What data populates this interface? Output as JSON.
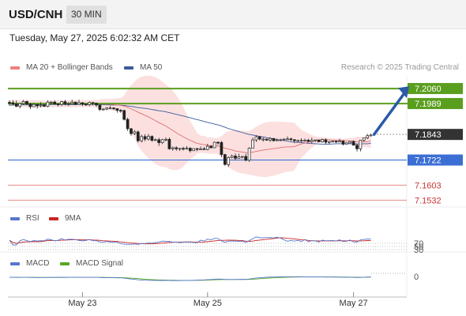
{
  "header": {
    "symbol": "USD/CNH",
    "timeframe": "30 MIN"
  },
  "datetime": "Tuesday, May 27, 2025 6:02:32 AM CET",
  "legend": [
    {
      "label": "MA 20 + Bollinger Bands",
      "color": "#f08080"
    },
    {
      "label": "MA 50",
      "color": "#3a5a9a"
    }
  ],
  "copyright": "Research © 2025 Trading Central",
  "rsi_legend": [
    {
      "label": "RSI",
      "color": "#5577cc"
    },
    {
      "label": "9MA",
      "color": "#cc2222"
    }
  ],
  "macd_legend": [
    {
      "label": "MACD",
      "color": "#5577cc"
    },
    {
      "label": "MACD Signal",
      "color": "#55aa22"
    }
  ],
  "colors": {
    "green": "#5a9e1e",
    "blue": "#3b6fd4",
    "red": "#e88a8a",
    "dark": "#333333",
    "candle": "#ffffff"
  },
  "chart_data": {
    "type": "candlestick",
    "x_ticks": [
      "May 23",
      "May 25",
      "May 27"
    ],
    "price_levels": [
      {
        "value": 7.206,
        "label": "7.2060",
        "style": "green"
      },
      {
        "value": 7.1989,
        "label": "7.1989",
        "style": "green"
      },
      {
        "value": 7.1843,
        "label": "7.1843",
        "style": "dark"
      },
      {
        "value": 7.1722,
        "label": "7.1722",
        "style": "blue"
      },
      {
        "value": 7.1603,
        "label": "7.1603",
        "style": "red"
      },
      {
        "value": 7.1532,
        "label": "7.1532",
        "style": "red"
      }
    ],
    "ohlc": [
      [
        7.1995,
        7.1993,
        7.2004,
        7.1979
      ],
      [
        7.1993,
        7.1987,
        7.2005,
        7.198
      ],
      [
        7.1987,
        7.1976,
        7.2003,
        7.1972
      ],
      [
        7.1976,
        7.1989,
        7.1992,
        7.1966
      ],
      [
        7.1989,
        7.1999,
        7.2006,
        7.1983
      ],
      [
        7.1999,
        7.1987,
        7.2003,
        7.1981
      ],
      [
        7.1987,
        7.1974,
        7.1991,
        7.1963
      ],
      [
        7.1974,
        7.1985,
        7.199,
        7.1974
      ],
      [
        7.1985,
        7.1978,
        7.1986,
        7.1965
      ],
      [
        7.1978,
        7.1982,
        7.1996,
        7.1971
      ],
      [
        7.1982,
        7.1976,
        7.1987,
        7.1973
      ],
      [
        7.1976,
        7.1996,
        7.2004,
        7.1971
      ],
      [
        7.1996,
        7.1996,
        7.2,
        7.1987
      ],
      [
        7.1996,
        7.1987,
        7.2004,
        7.1983
      ],
      [
        7.1987,
        7.1985,
        7.1989,
        7.1975
      ],
      [
        7.1985,
        7.1998,
        7.2002,
        7.1977
      ],
      [
        7.1998,
        7.1988,
        7.2006,
        7.1981
      ],
      [
        7.1988,
        7.1989,
        7.1996,
        7.1977
      ],
      [
        7.1989,
        7.1996,
        7.2007,
        7.1989
      ],
      [
        7.1996,
        7.1985,
        7.1997,
        7.1982
      ],
      [
        7.1985,
        7.1993,
        7.2007,
        7.1985
      ],
      [
        7.1993,
        7.1986,
        7.1996,
        7.1977
      ],
      [
        7.1986,
        7.1984,
        7.199,
        7.1978
      ],
      [
        7.1984,
        7.1994,
        7.1998,
        7.1976
      ],
      [
        7.1994,
        7.1991,
        7.1994,
        7.198
      ],
      [
        7.1991,
        7.1982,
        7.1991,
        7.1973
      ],
      [
        7.1982,
        7.1961,
        7.1984,
        7.1954
      ],
      [
        7.1961,
        7.1963,
        7.1966,
        7.1956
      ],
      [
        7.1963,
        7.1968,
        7.1971,
        7.1957
      ],
      [
        7.1968,
        7.1968,
        7.1977,
        7.1962
      ],
      [
        7.1968,
        7.1965,
        7.1971,
        7.1958
      ],
      [
        7.1965,
        7.1957,
        7.1966,
        7.1946
      ],
      [
        7.1957,
        7.1956,
        7.1963,
        7.1946
      ],
      [
        7.1956,
        7.1914,
        7.196,
        7.1909
      ],
      [
        7.1914,
        7.187,
        7.1922,
        7.186
      ],
      [
        7.187,
        7.1847,
        7.1873,
        7.1837
      ],
      [
        7.1847,
        7.1855,
        7.1863,
        7.184
      ],
      [
        7.1855,
        7.1813,
        7.1862,
        7.1805
      ],
      [
        7.1813,
        7.1833,
        7.1842,
        7.1805
      ],
      [
        7.1833,
        7.1821,
        7.1844,
        7.1811
      ],
      [
        7.1821,
        7.1834,
        7.1845,
        7.1814
      ],
      [
        7.1834,
        7.1815,
        7.1839,
        7.1808
      ],
      [
        7.1815,
        7.1818,
        7.1824,
        7.1813
      ],
      [
        7.1818,
        7.1804,
        7.1827,
        7.1789
      ],
      [
        7.1804,
        7.1818,
        7.1822,
        7.1798
      ],
      [
        7.1818,
        7.182,
        7.1829,
        7.1811
      ],
      [
        7.182,
        7.1775,
        7.1828,
        7.1771
      ],
      [
        7.1775,
        7.178,
        7.1786,
        7.1766
      ],
      [
        7.178,
        7.1775,
        7.1787,
        7.1766
      ],
      [
        7.1775,
        7.1777,
        7.1779,
        7.1765
      ],
      [
        7.1777,
        7.1775,
        7.1785,
        7.1767
      ],
      [
        7.1775,
        7.1778,
        7.1788,
        7.1771
      ],
      [
        7.1778,
        7.1766,
        7.1783,
        7.1757
      ],
      [
        7.1766,
        7.1776,
        7.1777,
        7.1765
      ],
      [
        7.1776,
        7.1774,
        7.1779,
        7.1764
      ],
      [
        7.1774,
        7.1775,
        7.1786,
        7.177
      ],
      [
        7.1775,
        7.1772,
        7.1784,
        7.1771
      ],
      [
        7.1772,
        7.1787,
        7.1799,
        7.1768
      ],
      [
        7.1787,
        7.178,
        7.1791,
        7.1777
      ],
      [
        7.178,
        7.1806,
        7.1809,
        7.1778
      ],
      [
        7.1806,
        7.1805,
        7.181,
        7.1793
      ],
      [
        7.1805,
        7.1748,
        7.1812,
        7.1736
      ],
      [
        7.1748,
        7.1701,
        7.1751,
        7.1695
      ],
      [
        7.1701,
        7.1734,
        7.1739,
        7.1689
      ],
      [
        7.1734,
        7.1741,
        7.1748,
        7.173
      ],
      [
        7.1741,
        7.173,
        7.1753,
        7.1721
      ],
      [
        7.173,
        7.1737,
        7.1752,
        7.1735
      ],
      [
        7.1737,
        7.1739,
        7.1741,
        7.1729
      ],
      [
        7.1739,
        7.1721,
        7.1752,
        7.1716
      ],
      [
        7.1721,
        7.1778,
        7.1782,
        7.1713
      ],
      [
        7.1778,
        7.1817,
        7.1828,
        7.1778
      ],
      [
        7.1817,
        7.1832,
        7.1839,
        7.1807
      ],
      [
        7.1832,
        7.1821,
        7.1835,
        7.1815
      ],
      [
        7.1821,
        7.1821,
        7.1828,
        7.1809
      ],
      [
        7.1821,
        7.1816,
        7.1823,
        7.1813
      ],
      [
        7.1816,
        7.1824,
        7.183,
        7.1808
      ],
      [
        7.1824,
        7.1813,
        7.1826,
        7.181
      ],
      [
        7.1813,
        7.1817,
        7.1824,
        7.1814
      ],
      [
        7.1817,
        7.1818,
        7.1823,
        7.181
      ],
      [
        7.1818,
        7.1821,
        7.1824,
        7.1815
      ],
      [
        7.1821,
        7.1822,
        7.1834,
        7.1818
      ],
      [
        7.1822,
        7.1818,
        7.1828,
        7.1812
      ],
      [
        7.1818,
        7.1813,
        7.1821,
        7.1802
      ],
      [
        7.1813,
        7.1814,
        7.1819,
        7.1808
      ],
      [
        7.1814,
        7.1815,
        7.1825,
        7.1804
      ],
      [
        7.1815,
        7.1816,
        7.1823,
        7.1809
      ],
      [
        7.1816,
        7.1809,
        7.1822,
        7.1809
      ],
      [
        7.1809,
        7.1815,
        7.1828,
        7.1801
      ],
      [
        7.1815,
        7.1817,
        7.1818,
        7.1807
      ],
      [
        7.1817,
        7.1808,
        7.1817,
        7.1807
      ],
      [
        7.1808,
        7.1818,
        7.1823,
        7.1804
      ],
      [
        7.1818,
        7.1806,
        7.1824,
        7.1796
      ],
      [
        7.1806,
        7.1809,
        7.181,
        7.1798
      ],
      [
        7.1809,
        7.1811,
        7.1812,
        7.1805
      ],
      [
        7.1811,
        7.1807,
        7.1815,
        7.1802
      ],
      [
        7.1807,
        7.1812,
        7.1823,
        7.1809
      ],
      [
        7.1812,
        7.1797,
        7.1815,
        7.1791
      ],
      [
        7.1797,
        7.1803,
        7.1806,
        7.1797
      ],
      [
        7.1803,
        7.181,
        7.181,
        7.1802
      ],
      [
        7.181,
        7.1792,
        7.1815,
        7.1792
      ],
      [
        7.1792,
        7.1775,
        7.1799,
        7.1762
      ],
      [
        7.1775,
        7.1816,
        7.1816,
        7.1763
      ],
      [
        7.1816,
        7.1827,
        7.1827,
        7.1809
      ],
      [
        7.1827,
        7.1837,
        7.1846,
        7.1821
      ],
      [
        7.1837,
        7.184,
        7.1847,
        7.1834
      ]
    ],
    "ma20": [
      7.1992,
      7.1991,
      7.199,
      7.1989,
      7.1989,
      7.1989,
      7.1988,
      7.1988,
      7.1987,
      7.1987,
      7.1987,
      7.1987,
      7.1987,
      7.1988,
      7.1988,
      7.1988,
      7.1988,
      7.1988,
      7.1989,
      7.1989,
      7.1989,
      7.1989,
      7.1989,
      7.1989,
      7.199,
      7.1989,
      7.1988,
      7.1987,
      7.1986,
      7.1985,
      7.1984,
      7.1982,
      7.198,
      7.1977,
      7.1971,
      7.1964,
      7.1957,
      7.1948,
      7.1941,
      7.1933,
      7.1926,
      7.1917,
      7.1908,
      7.1899,
      7.1891,
      7.1883,
      7.1872,
      7.1862,
      7.1851,
      7.1841,
      7.1832,
      7.1823,
      7.1815,
      7.1808,
      7.1801,
      7.1797,
      7.1795,
      7.1791,
      7.179,
      7.1789,
      7.1788,
      7.1784,
      7.1778,
      7.1774,
      7.177,
      7.1765,
      7.1762,
      7.176,
      7.1757,
      7.1757,
      7.1759,
      7.1763,
      7.1766,
      7.1769,
      7.1771,
      7.1774,
      7.1776,
      7.1778,
      7.1781,
      7.1783,
      7.1784,
      7.1784,
      7.1786,
      7.1792,
      7.1798,
      7.1802,
      7.1806,
      7.181,
      7.1814,
      7.1817,
      7.1819,
      7.1818,
      7.1817,
      7.1816,
      7.1815,
      7.1815,
      7.1814,
      7.1813,
      7.1812,
      7.1811,
      7.1808,
      7.1808,
      7.1808,
      7.1809,
      7.1811
    ],
    "ma50": [
      7.1981,
      7.1982,
      7.1983,
      7.1983,
      7.1983,
      7.1983,
      7.1983,
      7.1983,
      7.1984,
      7.1984,
      7.1984,
      7.1984,
      7.1984,
      7.1985,
      7.1985,
      7.1985,
      7.1984,
      7.1984,
      7.1984,
      7.1984,
      7.1985,
      7.1985,
      7.1985,
      7.1985,
      7.1985,
      7.1985,
      7.1984,
      7.1983,
      7.1983,
      7.1982,
      7.1982,
      7.1982,
      7.1981,
      7.198,
      7.1978,
      7.1976,
      7.1973,
      7.197,
      7.1968,
      7.1966,
      7.1964,
      7.1961,
      7.1958,
      7.1955,
      7.1953,
      7.195,
      7.1946,
      7.1942,
      7.1938,
      7.1934,
      7.193,
      7.1926,
      7.1922,
      7.1917,
      7.1913,
      7.1909,
      7.1904,
      7.19,
      7.1896,
      7.1892,
      7.1888,
      7.1883,
      7.1877,
      7.1871,
      7.1866,
      7.1861,
      7.1857,
      7.1852,
      7.1847,
      7.1843,
      7.184,
      7.1837,
      7.1834,
      7.1831,
      7.1828,
      7.1825,
      7.1822,
      7.1818,
      7.1816,
      7.1814,
      7.1811,
      7.1808,
      7.1806,
      7.1805,
      7.1804,
      7.1803,
      7.1801,
      7.18,
      7.1799,
      7.1798,
      7.1797,
      7.1797,
      7.1797,
      7.1798,
      7.1799,
      7.1799,
      7.1799,
      7.1799,
      7.1799,
      7.1799,
      7.1798,
      7.1798,
      7.1799,
      7.1799,
      7.1801
    ],
    "bb_upper": [
      7.2003,
      7.2004,
      7.2005,
      7.2005,
      7.2006,
      7.2006,
      7.2005,
      7.2005,
      7.2004,
      7.2004,
      7.2003,
      7.2003,
      7.2004,
      7.2004,
      7.2004,
      7.2004,
      7.2005,
      7.2005,
      7.2006,
      7.2006,
      7.2006,
      7.2006,
      7.2006,
      7.2006,
      7.2006,
      7.2006,
      7.2009,
      7.2011,
      7.2011,
      7.2012,
      7.2012,
      7.2014,
      7.2016,
      7.2028,
      7.2053,
      7.2076,
      7.2092,
      7.2109,
      7.2116,
      7.212,
      7.2121,
      7.2119,
      7.2114,
      7.2105,
      7.2092,
      7.2079,
      7.2066,
      7.205,
      7.203,
      7.2004,
      7.1973,
      7.1938,
      7.1907,
      7.1879,
      7.185,
      7.1837,
      7.1836,
      7.1829,
      7.1829,
      7.1826,
      7.1827,
      7.1834,
      7.185,
      7.1858,
      7.1862,
      7.1862,
      7.1862,
      7.1861,
      7.186,
      7.186,
      7.1868,
      7.188,
      7.1889,
      7.1896,
      7.1901,
      7.1903,
      7.1904,
      7.1904,
      7.1903,
      7.1902,
      7.1901,
      7.1901,
      7.1898,
      7.1881,
      7.1865,
      7.1856,
      7.1848,
      7.184,
      7.1835,
      7.1831,
      7.1829,
      7.1828,
      7.1825,
      7.1825,
      7.1824,
      7.1823,
      7.1823,
      7.1825,
      7.1826,
      7.1827,
      7.1833,
      7.1832,
      7.1833,
      7.1838,
      7.1844
    ],
    "bb_lower": [
      7.1981,
      7.1979,
      7.1976,
      7.1974,
      7.1972,
      7.1971,
      7.1971,
      7.1971,
      7.197,
      7.197,
      7.1971,
      7.1972,
      7.1971,
      7.1971,
      7.1971,
      7.1972,
      7.1971,
      7.1971,
      7.1972,
      7.1972,
      7.1972,
      7.1972,
      7.1972,
      7.1972,
      7.1973,
      7.1972,
      7.1967,
      7.1963,
      7.1961,
      7.1958,
      7.1955,
      7.195,
      7.1944,
      7.1926,
      7.1889,
      7.1853,
      7.1823,
      7.1788,
      7.1765,
      7.1746,
      7.173,
      7.1716,
      7.1703,
      7.1694,
      7.1691,
      7.1688,
      7.1679,
      7.1675,
      7.1673,
      7.1679,
      7.169,
      7.1708,
      7.1724,
      7.1737,
      7.1752,
      7.1756,
      7.1755,
      7.1754,
      7.1751,
      7.1752,
      7.1749,
      7.1735,
      7.1705,
      7.1689,
      7.1677,
      7.1669,
      7.1662,
      7.1659,
      7.1655,
      7.1653,
      7.165,
      7.1646,
      7.1643,
      7.1642,
      7.1641,
      7.1645,
      7.1648,
      7.1652,
      7.1658,
      7.1663,
      7.1667,
      7.1667,
      7.1673,
      7.1703,
      7.1731,
      7.1748,
      7.1765,
      7.178,
      7.1793,
      7.1803,
      7.1809,
      7.1808,
      7.1809,
      7.1807,
      7.1806,
      7.1806,
      7.1806,
      7.1801,
      7.1797,
      7.1794,
      7.1783,
      7.1783,
      7.1783,
      7.1781,
      7.1778
    ],
    "rsi_levels": [
      70,
      50,
      30
    ],
    "macd_levels": [
      0
    ]
  }
}
